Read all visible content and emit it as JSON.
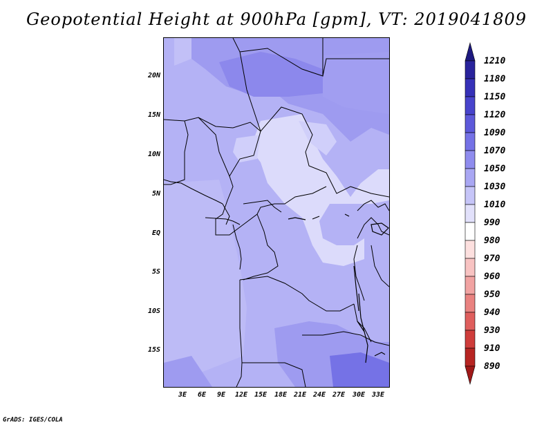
{
  "title": "Geopotential Height at 900hPa [gpm], VT: 2019041809",
  "footer": "GrADS: IGES/COLA",
  "axes": {
    "lat_ticks": [
      "20N",
      "15N",
      "10N",
      "5N",
      "EQ",
      "5S",
      "10S",
      "15S"
    ],
    "lon_ticks": [
      "3E",
      "6E",
      "9E",
      "12E",
      "15E",
      "18E",
      "21E",
      "24E",
      "27E",
      "30E",
      "33E"
    ]
  },
  "legend": {
    "levels": [
      "1210",
      "1180",
      "1150",
      "1120",
      "1090",
      "1070",
      "1050",
      "1030",
      "1010",
      "990",
      "980",
      "970",
      "960",
      "950",
      "940",
      "930",
      "910",
      "890"
    ],
    "colors": [
      "#1e1a80",
      "#29239c",
      "#3631b8",
      "#4844cc",
      "#5d59da",
      "#7572e6",
      "#8f8cee",
      "#a9a7f3",
      "#c6c5f8",
      "#e2e1fb",
      "#ffffff",
      "#fde0df",
      "#f8c3c2",
      "#f1a3a2",
      "#e98280",
      "#df5f5d",
      "#cf3d3b",
      "#b72522",
      "#a01818"
    ]
  },
  "palette": {
    "land_light": "#c9c7f8",
    "land_mid": "#b4b2f5",
    "land_dark": "#9e9bf0",
    "land_darker": "#8c88ec",
    "pale": "#dcdbfb"
  }
}
